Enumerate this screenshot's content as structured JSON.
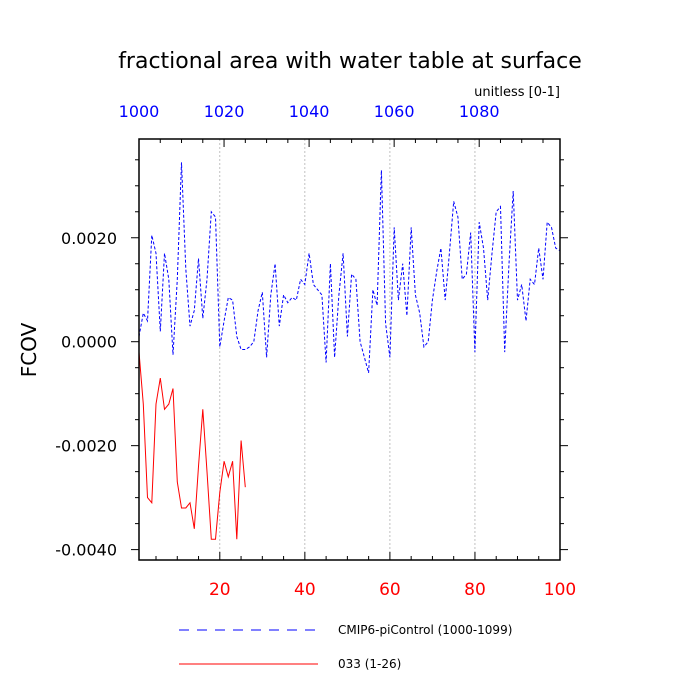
{
  "chart_data": {
    "type": "line",
    "title": "fractional area with water table at surface",
    "units_label": "unitless [0-1]",
    "ylabel": "FCOV",
    "xlabel": "",
    "xlim": [
      1,
      100
    ],
    "ylim": [
      -0.0042,
      0.0039
    ],
    "y_ticks": [
      "0.0020",
      "0.0000",
      "-0.0020",
      "-0.0040"
    ],
    "y_tick_values": [
      0.002,
      0.0,
      -0.002,
      -0.004
    ],
    "x_ticks_bottom": [
      "20",
      "40",
      "60",
      "80",
      "100"
    ],
    "x_tick_values_bottom": [
      20,
      40,
      60,
      80,
      100
    ],
    "x_ticks_top": [
      "1000",
      "1020",
      "1040",
      "1060",
      "1080"
    ],
    "x_tick_values_top": [
      1000,
      1020,
      1040,
      1060,
      1080
    ],
    "grid": "vertical dashed at major bottom ticks",
    "legend_position": "bottom",
    "series": [
      {
        "name": "CMIP6-piControl (1000-1099)",
        "color": "#0000ff",
        "dash": "dashed",
        "x": [
          1,
          2,
          3,
          4,
          5,
          6,
          7,
          8,
          9,
          10,
          11,
          12,
          13,
          14,
          15,
          16,
          17,
          18,
          19,
          20,
          21,
          22,
          23,
          24,
          25,
          26,
          27,
          28,
          29,
          30,
          31,
          32,
          33,
          34,
          35,
          36,
          37,
          38,
          39,
          40,
          41,
          42,
          43,
          44,
          45,
          46,
          47,
          48,
          49,
          50,
          51,
          52,
          53,
          54,
          55,
          56,
          57,
          58,
          59,
          60,
          61,
          62,
          63,
          64,
          65,
          66,
          67,
          68,
          69,
          70,
          71,
          72,
          73,
          74,
          75,
          76,
          77,
          78,
          79,
          80,
          81,
          82,
          83,
          84,
          85,
          86,
          87,
          88,
          89,
          90,
          91,
          92,
          93,
          94,
          95,
          96,
          97,
          98,
          99,
          100
        ],
        "values": [
          0.0001,
          0.00055,
          0.0004,
          0.00205,
          0.0017,
          0.0002,
          0.0017,
          0.0012,
          -0.00025,
          0.0012,
          0.00345,
          0.0014,
          0.0003,
          0.0006,
          0.0016,
          0.00045,
          0.0012,
          0.0025,
          0.0024,
          -0.0001,
          0.0004,
          0.00085,
          0.0008,
          0.0001,
          -0.00015,
          -0.00015,
          -0.0001,
          0.0,
          0.0006,
          0.00095,
          -0.0003,
          0.0009,
          0.0015,
          0.0003,
          0.0009,
          0.00075,
          0.00085,
          0.0008,
          0.0012,
          0.0011,
          0.0017,
          0.0011,
          0.001,
          0.0009,
          -0.0004,
          0.0015,
          -0.0003,
          0.0009,
          0.0017,
          0.0001,
          0.0013,
          0.0012,
          0.0,
          -0.0003,
          -0.0006,
          0.001,
          0.0007,
          0.0033,
          0.00035,
          -0.0003,
          0.0022,
          0.0008,
          0.0015,
          0.0005,
          0.0022,
          0.0009,
          0.00055,
          -0.0001,
          0.0,
          0.0008,
          0.00135,
          0.0018,
          0.0008,
          0.0017,
          0.0027,
          0.0024,
          0.0012,
          0.0013,
          0.0021,
          -0.0002,
          0.0023,
          0.0018,
          0.0008,
          0.0017,
          0.0025,
          0.0026,
          -0.0002,
          0.0015,
          0.0029,
          0.0008,
          0.0011,
          0.0004,
          0.0012,
          0.0011,
          0.0018,
          0.0012,
          0.0023,
          0.0022,
          0.0018,
          0.00175
        ]
      },
      {
        "name": "033 (1-26)",
        "color": "#ff0000",
        "dash": "solid",
        "x": [
          1,
          2,
          3,
          4,
          5,
          6,
          7,
          8,
          9,
          10,
          11,
          12,
          13,
          14,
          15,
          16,
          17,
          18,
          19,
          20,
          21,
          22,
          23,
          24,
          25,
          26
        ],
        "values": [
          -0.0002,
          -0.0012,
          -0.003,
          -0.0031,
          -0.0012,
          -0.0007,
          -0.0013,
          -0.0012,
          -0.0009,
          -0.0027,
          -0.0032,
          -0.0032,
          -0.0031,
          -0.0036,
          -0.0024,
          -0.0013,
          -0.0025,
          -0.0038,
          -0.0038,
          -0.0029,
          -0.0023,
          -0.0026,
          -0.0023,
          -0.0038,
          -0.0019,
          -0.0028
        ]
      }
    ]
  }
}
